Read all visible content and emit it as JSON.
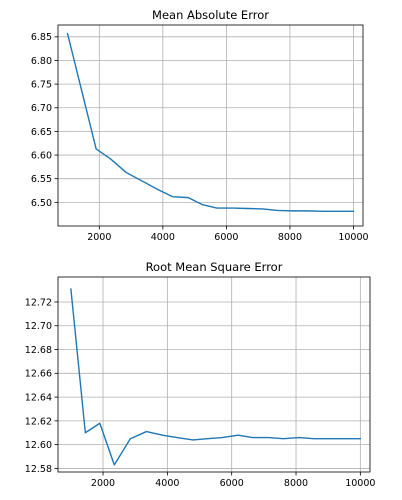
{
  "series_color": "#1f77b4",
  "chart_data": [
    {
      "type": "line",
      "title": "Mean Absolute Error",
      "xlabel": "",
      "ylabel": "",
      "grid": true,
      "xlim": [
        700,
        10300
      ],
      "ylim": [
        6.45,
        6.875
      ],
      "xticks": [
        2000,
        4000,
        6000,
        8000,
        10000
      ],
      "yticks": [
        6.5,
        6.55,
        6.6,
        6.65,
        6.7,
        6.75,
        6.8,
        6.85
      ],
      "ytick_labels": [
        "6.50",
        "6.55",
        "6.60",
        "6.65",
        "6.70",
        "6.75",
        "6.80",
        "6.85"
      ],
      "x": [
        1000,
        1450,
        1900,
        2350,
        2850,
        3350,
        3850,
        4300,
        4800,
        5250,
        5700,
        6200,
        6650,
        7150,
        7600,
        8100,
        8550,
        9050,
        9550,
        10000
      ],
      "values": [
        6.857,
        6.735,
        6.613,
        6.592,
        6.563,
        6.545,
        6.527,
        6.512,
        6.51,
        6.495,
        6.488,
        6.488,
        6.487,
        6.486,
        6.483,
        6.482,
        6.482,
        6.481,
        6.481,
        6.481
      ]
    },
    {
      "type": "line",
      "title": "Root Mean Square Error",
      "xlabel": "",
      "ylabel": "",
      "grid": true,
      "xlim": [
        600,
        10300
      ],
      "ylim": [
        12.577,
        12.741
      ],
      "xticks": [
        2000,
        4000,
        6000,
        8000,
        10000
      ],
      "yticks": [
        12.58,
        12.6,
        12.62,
        12.64,
        12.66,
        12.68,
        12.7,
        12.72
      ],
      "ytick_labels": [
        "12.58",
        "12.60",
        "12.62",
        "12.64",
        "12.66",
        "12.68",
        "12.70",
        "12.72"
      ],
      "x": [
        1000,
        1450,
        1900,
        2350,
        2850,
        3350,
        3850,
        4300,
        4800,
        5250,
        5700,
        6200,
        6650,
        7150,
        7600,
        8100,
        8550,
        9050,
        9550,
        10000
      ],
      "values": [
        12.731,
        12.61,
        12.618,
        12.583,
        12.605,
        12.611,
        12.608,
        12.606,
        12.604,
        12.605,
        12.606,
        12.608,
        12.606,
        12.606,
        12.605,
        12.606,
        12.605,
        12.605,
        12.605,
        12.605
      ]
    }
  ]
}
